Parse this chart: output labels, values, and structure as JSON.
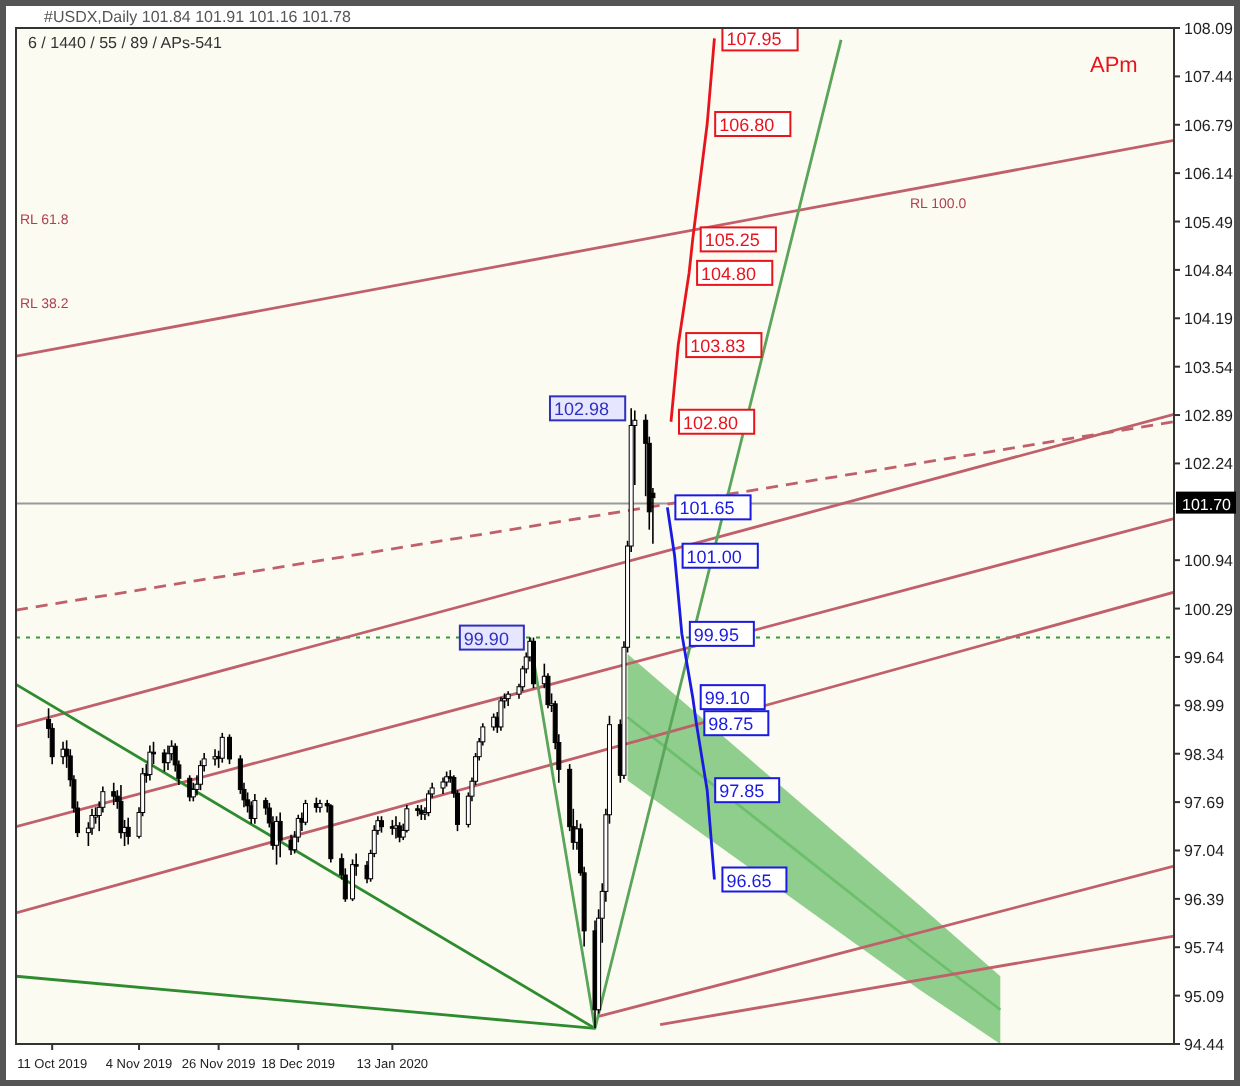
{
  "chart_data": {
    "type": "candlestick",
    "annotations": [
      "#USDX,Daily  101.84 101.91 101.16 101.78",
      "6 / 1440 / 55 / 89 / APs-541",
      "APm",
      {
        "text": "99.90",
        "x": "2020-02-20",
        "y": 99.9
      },
      {
        "text": "102.98",
        "x": "2020-03-19",
        "y": 102.98
      },
      "RL 100.0",
      "RL 61.8",
      "RL 38.2"
    ],
    "xlim": [
      "2019-10-01",
      "2020-08-16"
    ],
    "xticks": [
      {
        "value": "2019-10-11",
        "label": "11 Oct 2019"
      },
      {
        "value": "2019-11-04",
        "label": "4 Nov 2019"
      },
      {
        "value": "2019-11-26",
        "label": "26 Nov 2019"
      },
      {
        "value": "2019-12-18",
        "label": "18 Dec 2019"
      },
      {
        "value": "2020-01-13",
        "label": "13 Jan 2020"
      }
    ],
    "ylim": [
      94.44,
      108.09
    ],
    "yticks": [
      94.44,
      95.09,
      95.74,
      96.39,
      97.04,
      97.69,
      98.34,
      98.99,
      99.64,
      100.29,
      100.94,
      102.24,
      102.89,
      103.54,
      104.19,
      104.84,
      105.49,
      106.14,
      106.79,
      107.44,
      108.09
    ],
    "x": [
      "2019-10-10",
      "2019-10-11",
      "2019-10-14",
      "2019-10-15",
      "2019-10-16",
      "2019-10-17",
      "2019-10-18",
      "2019-10-21",
      "2019-10-22",
      "2019-10-23",
      "2019-10-24",
      "2019-10-25",
      "2019-10-28",
      "2019-10-29",
      "2019-10-30",
      "2019-10-31",
      "2019-11-01",
      "2019-11-04",
      "2019-11-05",
      "2019-11-06",
      "2019-11-07",
      "2019-11-08",
      "2019-11-11",
      "2019-11-12",
      "2019-11-13",
      "2019-11-14",
      "2019-11-15",
      "2019-11-18",
      "2019-11-19",
      "2019-11-20",
      "2019-11-21",
      "2019-11-22",
      "2019-11-25",
      "2019-11-26",
      "2019-11-27",
      "2019-11-29",
      "2019-12-02",
      "2019-12-03",
      "2019-12-04",
      "2019-12-05",
      "2019-12-06",
      "2019-12-09",
      "2019-12-10",
      "2019-12-11",
      "2019-12-12",
      "2019-12-13",
      "2019-12-16",
      "2019-12-17",
      "2019-12-18",
      "2019-12-19",
      "2019-12-20",
      "2019-12-23",
      "2019-12-24",
      "2019-12-26",
      "2019-12-27",
      "2019-12-30",
      "2019-12-31",
      "2020-01-02",
      "2020-01-03",
      "2020-01-06",
      "2020-01-07",
      "2020-01-08",
      "2020-01-09",
      "2020-01-10",
      "2020-01-13",
      "2020-01-14",
      "2020-01-15",
      "2020-01-16",
      "2020-01-17",
      "2020-01-20",
      "2020-01-21",
      "2020-01-22",
      "2020-01-23",
      "2020-01-24",
      "2020-01-27",
      "2020-01-28",
      "2020-01-29",
      "2020-01-30",
      "2020-01-31",
      "2020-02-03",
      "2020-02-04",
      "2020-02-05",
      "2020-02-06",
      "2020-02-07",
      "2020-02-10",
      "2020-02-11",
      "2020-02-12",
      "2020-02-13",
      "2020-02-14",
      "2020-02-17",
      "2020-02-18",
      "2020-02-19",
      "2020-02-20",
      "2020-02-21",
      "2020-02-24",
      "2020-02-25",
      "2020-02-26",
      "2020-02-27",
      "2020-02-28",
      "2020-03-02",
      "2020-03-03",
      "2020-03-04",
      "2020-03-05",
      "2020-03-06",
      "2020-03-09",
      "2020-03-10",
      "2020-03-11",
      "2020-03-12",
      "2020-03-13",
      "2020-03-16",
      "2020-03-17",
      "2020-03-18",
      "2020-03-19",
      "2020-03-20",
      "2020-03-23",
      "2020-03-24",
      "2020-03-25"
    ],
    "ohlc": [
      [
        98.8,
        98.95,
        98.55,
        98.68
      ],
      [
        98.68,
        98.75,
        98.2,
        98.3
      ],
      [
        98.3,
        98.5,
        98.2,
        98.4
      ],
      [
        98.4,
        98.52,
        98.15,
        98.31
      ],
      [
        98.31,
        98.4,
        97.9,
        97.99
      ],
      [
        97.99,
        98.05,
        97.55,
        97.61
      ],
      [
        97.61,
        97.7,
        97.22,
        97.28
      ],
      [
        97.28,
        97.42,
        97.1,
        97.34
      ],
      [
        97.34,
        97.6,
        97.25,
        97.51
      ],
      [
        97.51,
        97.62,
        97.4,
        97.51
      ],
      [
        97.51,
        97.7,
        97.3,
        97.62
      ],
      [
        97.62,
        97.9,
        97.55,
        97.83
      ],
      [
        97.83,
        97.95,
        97.65,
        97.77
      ],
      [
        97.77,
        97.85,
        97.6,
        97.7
      ],
      [
        97.7,
        97.92,
        97.2,
        97.28
      ],
      [
        97.28,
        97.45,
        97.1,
        97.35
      ],
      [
        97.35,
        97.48,
        97.12,
        97.23
      ],
      [
        97.23,
        97.62,
        97.2,
        97.55
      ],
      [
        97.55,
        98.15,
        97.5,
        98.07
      ],
      [
        98.07,
        98.2,
        97.95,
        98.06
      ],
      [
        98.06,
        98.45,
        97.98,
        98.36
      ],
      [
        98.36,
        98.5,
        98.2,
        98.35
      ],
      [
        98.35,
        98.4,
        98.1,
        98.22
      ],
      [
        98.22,
        98.45,
        98.12,
        98.34
      ],
      [
        98.34,
        98.52,
        98.25,
        98.44
      ],
      [
        98.44,
        98.48,
        98.1,
        98.19
      ],
      [
        98.19,
        98.25,
        97.92,
        98.01
      ],
      [
        98.01,
        98.05,
        97.7,
        97.76
      ],
      [
        97.76,
        97.95,
        97.7,
        97.86
      ],
      [
        97.86,
        98.05,
        97.78,
        97.93
      ],
      [
        97.93,
        98.25,
        97.85,
        98.18
      ],
      [
        98.18,
        98.35,
        98.1,
        98.27
      ],
      [
        98.27,
        98.4,
        98.18,
        98.3
      ],
      [
        98.3,
        98.38,
        98.15,
        98.28
      ],
      [
        98.28,
        98.62,
        98.22,
        98.56
      ],
      [
        98.56,
        98.6,
        98.2,
        98.27
      ],
      [
        98.27,
        98.32,
        97.8,
        97.86
      ],
      [
        97.86,
        97.95,
        97.62,
        97.72
      ],
      [
        97.72,
        97.82,
        97.55,
        97.64
      ],
      [
        97.64,
        97.7,
        97.4,
        97.47
      ],
      [
        97.47,
        97.8,
        97.4,
        97.71
      ],
      [
        97.71,
        97.75,
        97.52,
        97.61
      ],
      [
        97.61,
        97.68,
        97.35,
        97.41
      ],
      [
        97.41,
        97.5,
        97.05,
        97.11
      ],
      [
        97.11,
        97.5,
        96.85,
        97.43
      ],
      [
        97.43,
        97.55,
        96.95,
        97.18
      ],
      [
        97.18,
        97.25,
        96.98,
        97.05
      ],
      [
        97.05,
        97.3,
        97.0,
        97.22
      ],
      [
        97.22,
        97.52,
        97.15,
        97.47
      ],
      [
        97.47,
        97.55,
        97.3,
        97.42
      ],
      [
        97.42,
        97.72,
        97.38,
        97.67
      ],
      [
        97.67,
        97.75,
        97.55,
        97.62
      ],
      [
        97.62,
        97.72,
        97.55,
        97.67
      ],
      [
        97.67,
        97.72,
        97.55,
        97.64
      ],
      [
        97.64,
        97.66,
        96.88,
        96.93
      ],
      [
        96.93,
        97.0,
        96.65,
        96.71
      ],
      [
        96.71,
        96.8,
        96.35,
        96.39
      ],
      [
        96.39,
        96.92,
        96.36,
        96.85
      ],
      [
        96.85,
        97.0,
        96.7,
        96.84
      ],
      [
        96.84,
        96.9,
        96.6,
        96.66
      ],
      [
        96.66,
        97.05,
        96.62,
        97.0
      ],
      [
        97.0,
        97.38,
        96.95,
        97.31
      ],
      [
        97.31,
        97.5,
        97.25,
        97.44
      ],
      [
        97.44,
        97.5,
        97.28,
        97.36
      ],
      [
        97.36,
        97.45,
        97.25,
        97.34
      ],
      [
        97.34,
        97.5,
        97.2,
        97.37
      ],
      [
        97.37,
        97.42,
        97.15,
        97.22
      ],
      [
        97.22,
        97.4,
        97.18,
        97.31
      ],
      [
        97.31,
        97.65,
        97.28,
        97.6
      ],
      [
        97.6,
        97.65,
        97.5,
        97.58
      ],
      [
        97.58,
        97.65,
        97.45,
        97.53
      ],
      [
        97.53,
        97.62,
        97.45,
        97.55
      ],
      [
        97.55,
        97.85,
        97.5,
        97.8
      ],
      [
        97.8,
        97.95,
        97.75,
        97.88
      ],
      [
        97.88,
        98.02,
        97.8,
        97.96
      ],
      [
        97.96,
        98.1,
        97.9,
        98.03
      ],
      [
        98.03,
        98.12,
        97.95,
        98.02
      ],
      [
        98.02,
        98.05,
        97.75,
        97.81
      ],
      [
        97.81,
        97.85,
        97.3,
        97.39
      ],
      [
        97.39,
        97.82,
        97.35,
        97.77
      ],
      [
        97.77,
        98.02,
        97.7,
        97.97
      ],
      [
        97.97,
        98.35,
        97.92,
        98.3
      ],
      [
        98.3,
        98.55,
        98.25,
        98.5
      ],
      [
        98.5,
        98.75,
        98.45,
        98.7
      ],
      [
        98.7,
        98.88,
        98.65,
        98.83
      ],
      [
        98.83,
        98.9,
        98.62,
        98.7
      ],
      [
        98.7,
        99.1,
        98.65,
        99.05
      ],
      [
        99.05,
        99.15,
        98.95,
        99.08
      ],
      [
        99.08,
        99.18,
        98.98,
        99.14
      ],
      [
        99.14,
        99.28,
        99.08,
        99.24
      ],
      [
        99.24,
        99.52,
        99.18,
        99.48
      ],
      [
        99.48,
        99.7,
        99.42,
        99.64
      ],
      [
        99.64,
        99.9,
        99.58,
        99.85
      ],
      [
        99.85,
        99.9,
        99.22,
        99.28
      ],
      [
        99.28,
        99.55,
        99.22,
        99.38
      ],
      [
        99.38,
        99.42,
        98.95,
        99.0
      ],
      [
        99.0,
        99.15,
        98.9,
        99.01
      ],
      [
        99.01,
        99.05,
        98.4,
        98.49
      ],
      [
        98.49,
        98.6,
        97.95,
        98.13
      ],
      [
        98.13,
        98.2,
        97.3,
        97.36
      ],
      [
        97.36,
        97.6,
        97.05,
        97.15
      ],
      [
        97.15,
        97.45,
        97.05,
        97.33
      ],
      [
        97.33,
        97.4,
        96.7,
        96.74
      ],
      [
        96.74,
        96.82,
        95.75,
        95.96
      ],
      [
        95.96,
        96.1,
        94.65,
        94.9
      ],
      [
        94.9,
        96.25,
        94.85,
        96.13
      ],
      [
        96.13,
        96.6,
        95.8,
        96.49
      ],
      [
        96.49,
        97.6,
        96.35,
        97.52
      ],
      [
        97.52,
        98.85,
        97.4,
        98.73
      ],
      [
        98.73,
        98.8,
        97.95,
        98.05
      ],
      [
        98.05,
        99.85,
        98.0,
        99.77
      ],
      [
        99.77,
        101.2,
        99.7,
        101.13
      ],
      [
        101.13,
        102.98,
        101.05,
        102.75
      ],
      [
        102.75,
        102.95,
        101.95,
        102.82
      ],
      [
        102.82,
        102.9,
        101.8,
        102.51
      ],
      [
        102.51,
        102.6,
        101.35,
        101.59
      ],
      [
        101.84,
        101.91,
        101.16,
        101.78
      ]
    ],
    "series": [
      {
        "type": "line",
        "color": "#6cbf6c",
        "x": [
          "2020-03-18",
          "2020-06-07",
          "2020-06-29"
        ],
        "values": [
          98.83,
          95.72,
          94.9
        ],
        "lower": [
          97.98,
          95.16,
          94.44
        ],
        "upper": [
          99.68,
          96.29,
          95.35
        ]
      },
      {
        "type": "line",
        "color": "#c0606a",
        "x": [
          "2019-10-01",
          "2020-08-16"
        ],
        "values": [
          103.68,
          106.58
        ]
      },
      {
        "type": "line",
        "color": "#c0606a",
        "x": [
          "2019-10-01",
          "2020-08-16"
        ],
        "values": [
          98.71,
          102.9
        ]
      },
      {
        "type": "line",
        "color": "#c0606a",
        "x": [
          "2019-10-01",
          "2020-08-16"
        ],
        "values": [
          97.36,
          101.5
        ]
      },
      {
        "type": "line",
        "color": "#c0606a",
        "x": [
          "2019-10-01",
          "2020-08-16"
        ],
        "values": [
          96.2,
          100.51
        ]
      },
      {
        "type": "line",
        "color": "#c0606a",
        "x": [
          "2020-03-10",
          "2020-08-16"
        ],
        "values": [
          94.81,
          96.83
        ]
      },
      {
        "type": "line",
        "color": "#c0606a",
        "x": [
          "2020-03-27",
          "2020-08-16"
        ],
        "values": [
          94.7,
          95.89
        ]
      },
      {
        "type": "line",
        "color": "#c0606a",
        "line_style": "dashed",
        "x": [
          "2019-10-01",
          "2020-08-16"
        ],
        "values": [
          100.27,
          102.8
        ]
      },
      {
        "type": "line",
        "color": "#2e8b2e",
        "x": [
          "2019-10-01",
          "2020-03-09"
        ],
        "values": [
          99.27,
          94.65
        ]
      },
      {
        "type": "line",
        "color": "#2e8b2e",
        "x": [
          "2019-10-01",
          "2020-03-09"
        ],
        "values": [
          95.35,
          94.65
        ]
      },
      {
        "type": "line",
        "color": "#5aa55a",
        "x": [
          "2020-02-20",
          "2020-03-09",
          "2020-05-16"
        ],
        "values": [
          99.9,
          94.65,
          107.93
        ]
      },
      {
        "type": "line",
        "color": "#e8141c",
        "x": [
          "2020-03-30",
          "2020-04-01",
          "2020-04-04",
          "2020-04-05",
          "2020-04-09",
          "2020-04-11"
        ],
        "values": [
          102.8,
          103.83,
          104.8,
          105.25,
          106.8,
          107.95
        ],
        "value_labels": [
          "102.80",
          "103.83",
          "104.80",
          "105.25",
          "106.80",
          "107.95"
        ]
      },
      {
        "type": "line",
        "color": "#1a1ae0",
        "x": [
          "2020-03-29",
          "2020-03-31",
          "2020-04-02",
          "2020-04-05",
          "2020-04-06",
          "2020-04-09",
          "2020-04-11"
        ],
        "values": [
          101.65,
          101.0,
          99.95,
          99.1,
          98.75,
          97.85,
          96.65
        ],
        "value_labels": [
          "101.65",
          "101.00",
          "99.95",
          "99.10",
          "98.75",
          "97.85",
          "96.65"
        ]
      }
    ],
    "ref_lines": [
      {
        "axis": "y",
        "value": 101.7,
        "label": "101.70",
        "color": "#999999"
      },
      {
        "axis": "y",
        "value": 99.9,
        "color": "#3a9a3a",
        "line_style": "dotted"
      }
    ]
  }
}
